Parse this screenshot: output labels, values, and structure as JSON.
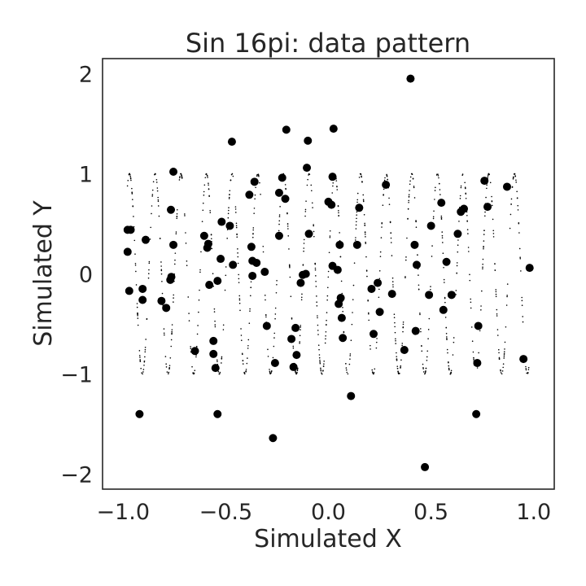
{
  "chart_data": {
    "type": "scatter",
    "title": "Sin 16pi: data pattern",
    "xlabel": "Simulated X",
    "ylabel": "Simulated Y",
    "xlim": [
      -1.1,
      1.1
    ],
    "ylim": [
      -2.15,
      2.15
    ],
    "grid": false,
    "x_ticks": [
      -1.0,
      -0.5,
      0.0,
      0.5,
      1.0
    ],
    "x_tick_labels": [
      "−1.0",
      "−0.5",
      "0.0",
      "0.5",
      "1.0"
    ],
    "y_ticks": [
      -2,
      -1,
      0,
      1,
      2
    ],
    "y_tick_labels": [
      "−2",
      "−1",
      "0",
      "1",
      "2"
    ],
    "colors": {
      "points": "#000000",
      "frame": "#262626",
      "text": "#262626"
    },
    "underlying_curve": {
      "description_formula": "y = sin(16*pi*x)",
      "x_range": [
        -0.98,
        0.98
      ],
      "count": 1000,
      "marker_size": "small"
    },
    "series": [
      {
        "marker_size": "large",
        "points": [
          [
            -0.978,
            0.44
          ],
          [
            -0.963,
            0.44
          ],
          [
            -0.978,
            0.22
          ],
          [
            -0.97,
            -0.17
          ],
          [
            -0.92,
            -1.4
          ],
          [
            -0.905,
            -0.26
          ],
          [
            -0.905,
            -0.15
          ],
          [
            -0.89,
            0.34
          ],
          [
            -0.813,
            -0.27
          ],
          [
            -0.79,
            -0.34
          ],
          [
            -0.77,
            -0.06
          ],
          [
            -0.765,
            -0.03
          ],
          [
            -0.767,
            0.64
          ],
          [
            -0.755,
            1.02
          ],
          [
            -0.755,
            0.29
          ],
          [
            -0.65,
            -0.77
          ],
          [
            -0.605,
            0.38
          ],
          [
            -0.59,
            0.26
          ],
          [
            -0.585,
            0.3
          ],
          [
            -0.58,
            -0.11
          ],
          [
            -0.56,
            -0.67
          ],
          [
            -0.56,
            -0.8
          ],
          [
            -0.55,
            -0.94
          ],
          [
            -0.54,
            -1.4
          ],
          [
            -0.54,
            -0.07
          ],
          [
            -0.525,
            0.15
          ],
          [
            -0.52,
            0.52
          ],
          [
            -0.48,
            0.48
          ],
          [
            -0.47,
            1.32
          ],
          [
            -0.465,
            0.09
          ],
          [
            -0.385,
            0.79
          ],
          [
            -0.375,
            0.27
          ],
          [
            -0.37,
            0.13
          ],
          [
            -0.37,
            -0.02
          ],
          [
            -0.36,
            0.92
          ],
          [
            -0.35,
            0.11
          ],
          [
            -0.31,
            0.02
          ],
          [
            -0.3,
            -0.52
          ],
          [
            -0.27,
            -1.64
          ],
          [
            -0.26,
            -0.89
          ],
          [
            -0.24,
            0.38
          ],
          [
            -0.24,
            0.81
          ],
          [
            -0.225,
            0.96
          ],
          [
            -0.21,
            0.75
          ],
          [
            -0.205,
            1.44
          ],
          [
            -0.18,
            -0.65
          ],
          [
            -0.17,
            -0.93
          ],
          [
            -0.16,
            -0.54
          ],
          [
            -0.155,
            -0.81
          ],
          [
            -0.135,
            -0.09
          ],
          [
            -0.125,
            -0.01
          ],
          [
            -0.11,
            0.0
          ],
          [
            -0.105,
            1.06
          ],
          [
            -0.095,
            0.4
          ],
          [
            -0.1,
            1.33
          ],
          [
            0.0,
            0.72
          ],
          [
            0.015,
            0.69
          ],
          [
            0.02,
            0.97
          ],
          [
            0.02,
            0.08
          ],
          [
            0.025,
            1.45
          ],
          [
            0.045,
            0.04
          ],
          [
            0.05,
            -0.3
          ],
          [
            0.055,
            0.29
          ],
          [
            0.06,
            -0.24
          ],
          [
            0.065,
            -0.44
          ],
          [
            0.07,
            -0.64
          ],
          [
            0.11,
            -1.22
          ],
          [
            0.14,
            0.29
          ],
          [
            0.15,
            0.66
          ],
          [
            0.21,
            -0.15
          ],
          [
            0.22,
            -0.6
          ],
          [
            0.24,
            -0.09
          ],
          [
            0.25,
            -0.38
          ],
          [
            0.28,
            0.89
          ],
          [
            0.31,
            -0.2
          ],
          [
            0.37,
            -0.76
          ],
          [
            0.4,
            1.95
          ],
          [
            0.42,
            0.29
          ],
          [
            0.425,
            -0.57
          ],
          [
            0.43,
            0.09
          ],
          [
            0.47,
            -1.93
          ],
          [
            0.49,
            -0.21
          ],
          [
            0.5,
            0.48
          ],
          [
            0.55,
            0.71
          ],
          [
            0.56,
            -0.36
          ],
          [
            0.575,
            0.12
          ],
          [
            0.6,
            -0.21
          ],
          [
            0.63,
            0.4
          ],
          [
            0.645,
            0.62
          ],
          [
            0.66,
            0.65
          ],
          [
            0.72,
            -1.4
          ],
          [
            0.725,
            -0.89
          ],
          [
            0.73,
            -0.52
          ],
          [
            0.76,
            0.93
          ],
          [
            0.775,
            0.67
          ],
          [
            0.87,
            0.87
          ],
          [
            0.95,
            -0.85
          ],
          [
            0.98,
            0.06
          ]
        ]
      }
    ]
  }
}
